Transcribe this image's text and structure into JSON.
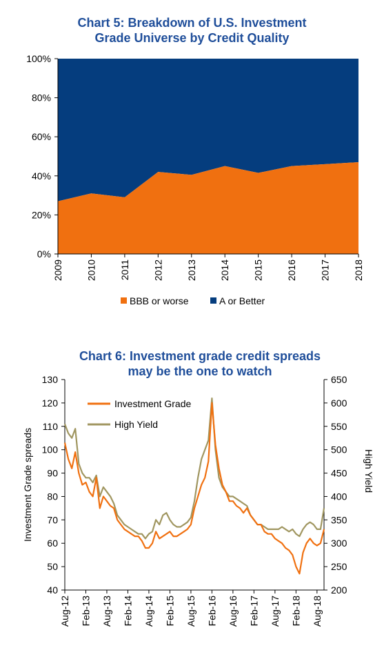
{
  "chart_data": [
    {
      "type": "area",
      "title_line1": "Chart 5: Breakdown of U.S. Investment",
      "title_line2": "Grade Universe by Credit Quality",
      "categories": [
        "2009",
        "2010",
        "2011",
        "2012",
        "2013",
        "2014",
        "2015",
        "2016",
        "2017",
        "2018"
      ],
      "y_ticks": [
        "0%",
        "20%",
        "40%",
        "60%",
        "80%",
        "100%"
      ],
      "ylim": [
        0,
        100
      ],
      "stacked": true,
      "series": [
        {
          "name": "BBB or worse",
          "color": "#f07010",
          "values": [
            27,
            31,
            29,
            42,
            40.5,
            45,
            41.5,
            45,
            46,
            47
          ]
        },
        {
          "name": "A or Better",
          "color": "#053d7e",
          "values": [
            73,
            69,
            71,
            58,
            59.5,
            55,
            58.5,
            55,
            54,
            53
          ]
        }
      ],
      "legend": "bottom",
      "grid": false
    },
    {
      "type": "line",
      "title_line1": "Chart 6: Investment grade credit spreads",
      "title_line2": "may be the one to watch",
      "ylabel": "Investment Grade spreads",
      "y2label": "High Yield",
      "ylim": [
        40,
        130
      ],
      "y2lim": [
        200,
        650
      ],
      "y_ticks": [
        "40",
        "50",
        "60",
        "70",
        "80",
        "90",
        "100",
        "110",
        "120",
        "130"
      ],
      "y2_ticks": [
        "200",
        "250",
        "300",
        "350",
        "400",
        "450",
        "500",
        "550",
        "600",
        "650"
      ],
      "x_ticks": [
        "Aug-12",
        "Feb-13",
        "Aug-13",
        "Feb-14",
        "Aug-14",
        "Feb-15",
        "Aug-15",
        "Feb-16",
        "Aug-16",
        "Feb-17",
        "Aug-17",
        "Feb-18",
        "Aug-18"
      ],
      "legend": "top-left",
      "grid": false,
      "series": [
        {
          "name": "Investment Grade",
          "axis": "left",
          "color": "#f07010",
          "x": [
            "2012-08",
            "2012-09",
            "2012-10",
            "2012-11",
            "2012-12",
            "2013-01",
            "2013-02",
            "2013-03",
            "2013-04",
            "2013-05",
            "2013-06",
            "2013-07",
            "2013-08",
            "2013-09",
            "2013-10",
            "2013-11",
            "2013-12",
            "2014-01",
            "2014-02",
            "2014-03",
            "2014-04",
            "2014-05",
            "2014-06",
            "2014-07",
            "2014-08",
            "2014-09",
            "2014-10",
            "2014-11",
            "2014-12",
            "2015-01",
            "2015-02",
            "2015-03",
            "2015-04",
            "2015-05",
            "2015-06",
            "2015-07",
            "2015-08",
            "2015-09",
            "2015-10",
            "2015-11",
            "2015-12",
            "2016-01",
            "2016-02",
            "2016-03",
            "2016-04",
            "2016-05",
            "2016-06",
            "2016-07",
            "2016-08",
            "2016-09",
            "2016-10",
            "2016-11",
            "2016-12",
            "2017-01",
            "2017-02",
            "2017-03",
            "2017-04",
            "2017-05",
            "2017-06",
            "2017-07",
            "2017-08",
            "2017-09",
            "2017-10",
            "2017-11",
            "2017-12",
            "2018-01",
            "2018-02",
            "2018-03",
            "2018-04",
            "2018-05",
            "2018-06",
            "2018-07",
            "2018-08",
            "2018-09",
            "2018-10"
          ],
          "values": [
            103,
            96,
            92,
            99,
            90,
            85,
            86,
            82,
            80,
            88,
            75,
            80,
            78,
            76,
            75,
            70,
            68,
            66,
            65,
            64,
            63,
            63,
            61,
            58,
            58,
            60,
            65,
            62,
            63,
            64,
            65,
            63,
            63,
            64,
            65,
            66,
            68,
            75,
            80,
            85,
            88,
            95,
            120,
            102,
            92,
            85,
            82,
            78,
            78,
            76,
            75,
            73,
            75,
            72,
            70,
            68,
            68,
            65,
            64,
            64,
            62,
            61,
            60,
            58,
            57,
            55,
            50,
            47,
            56,
            60,
            62,
            60,
            59,
            60,
            66
          ]
        },
        {
          "name": "High Yield",
          "axis": "right",
          "color": "#a09660",
          "x": [
            "2012-08",
            "2012-09",
            "2012-10",
            "2012-11",
            "2012-12",
            "2013-01",
            "2013-02",
            "2013-03",
            "2013-04",
            "2013-05",
            "2013-06",
            "2013-07",
            "2013-08",
            "2013-09",
            "2013-10",
            "2013-11",
            "2013-12",
            "2014-01",
            "2014-02",
            "2014-03",
            "2014-04",
            "2014-05",
            "2014-06",
            "2014-07",
            "2014-08",
            "2014-09",
            "2014-10",
            "2014-11",
            "2014-12",
            "2015-01",
            "2015-02",
            "2015-03",
            "2015-04",
            "2015-05",
            "2015-06",
            "2015-07",
            "2015-08",
            "2015-09",
            "2015-10",
            "2015-11",
            "2015-12",
            "2016-01",
            "2016-02",
            "2016-03",
            "2016-04",
            "2016-05",
            "2016-06",
            "2016-07",
            "2016-08",
            "2016-09",
            "2016-10",
            "2016-11",
            "2016-12",
            "2017-01",
            "2017-02",
            "2017-03",
            "2017-04",
            "2017-05",
            "2017-06",
            "2017-07",
            "2017-08",
            "2017-09",
            "2017-10",
            "2017-11",
            "2017-12",
            "2018-01",
            "2018-02",
            "2018-03",
            "2018-04",
            "2018-05",
            "2018-06",
            "2018-07",
            "2018-08",
            "2018-09",
            "2018-10"
          ],
          "values": [
            555,
            535,
            525,
            545,
            470,
            450,
            440,
            440,
            430,
            445,
            400,
            420,
            410,
            400,
            385,
            360,
            350,
            340,
            335,
            330,
            325,
            320,
            320,
            310,
            320,
            325,
            350,
            340,
            360,
            365,
            350,
            340,
            335,
            335,
            340,
            345,
            355,
            390,
            440,
            480,
            500,
            520,
            610,
            500,
            440,
            420,
            410,
            400,
            400,
            395,
            390,
            385,
            380,
            360,
            350,
            340,
            340,
            335,
            330,
            330,
            330,
            330,
            335,
            330,
            325,
            330,
            320,
            315,
            330,
            340,
            345,
            340,
            330,
            330,
            375
          ]
        }
      ]
    }
  ]
}
